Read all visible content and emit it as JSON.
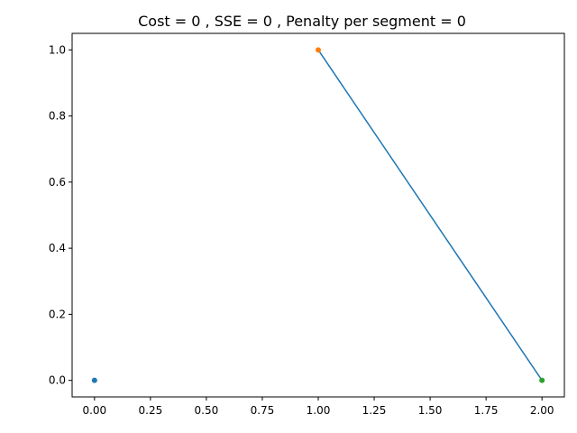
{
  "chart_data": {
    "type": "scatter",
    "title": "Cost = 0 , SSE = 0 , Penalty per segment = 0",
    "xlabel": "",
    "ylabel": "",
    "xlim": [
      -0.1,
      2.1
    ],
    "ylim": [
      -0.05,
      1.05
    ],
    "xticks": [
      0.0,
      0.25,
      0.5,
      0.75,
      1.0,
      1.25,
      1.5,
      1.75,
      2.0
    ],
    "xtick_labels": [
      "0.00",
      "0.25",
      "0.50",
      "0.75",
      "1.00",
      "1.25",
      "1.50",
      "1.75",
      "2.00"
    ],
    "yticks": [
      0.0,
      0.2,
      0.4,
      0.6,
      0.8,
      1.0
    ],
    "ytick_labels": [
      "0.0",
      "0.2",
      "0.4",
      "0.6",
      "0.8",
      "1.0"
    ],
    "grid": false,
    "points": [
      {
        "x": 0,
        "y": 0,
        "color": "#1f77b4"
      },
      {
        "x": 1,
        "y": 1,
        "color": "#ff7f0e"
      },
      {
        "x": 2,
        "y": 0,
        "color": "#2ca02c"
      }
    ],
    "segments": [
      {
        "x": [
          1,
          2
        ],
        "y": [
          1,
          0
        ],
        "color": "#1f77b4"
      }
    ]
  }
}
